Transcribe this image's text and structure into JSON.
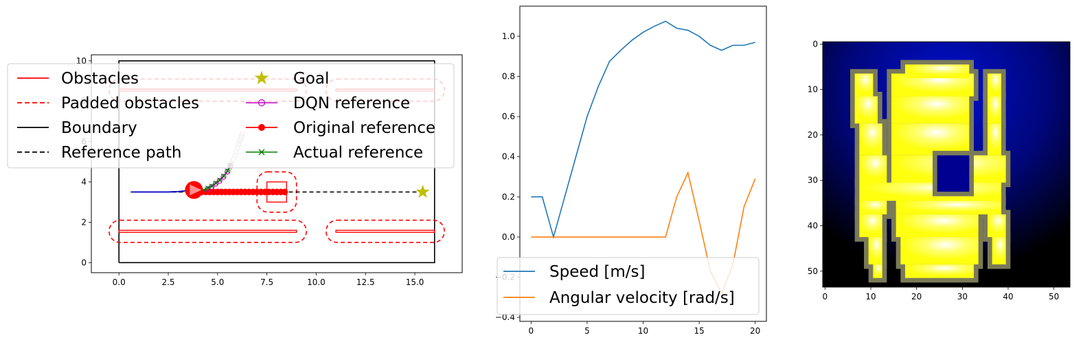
{
  "chart_data": [
    {
      "type": "line",
      "xlim": [
        -1.4,
        17.4
      ],
      "ylim": [
        -0.5,
        10.3
      ],
      "xticks": [
        0.0,
        2.5,
        5.0,
        7.5,
        10.0,
        12.5,
        15.0
      ],
      "xtick_labels": [
        "0.0",
        "2.5",
        "5.0",
        "7.5",
        "10.0",
        "12.5",
        "15.0"
      ],
      "yticks": [
        0,
        2,
        4,
        6,
        8,
        10
      ],
      "ytick_labels": [
        "0",
        "2",
        "4",
        "6",
        "8",
        "10"
      ],
      "legend": {
        "placement": "upper-left",
        "columns": 2,
        "entries": [
          "Obstacles",
          "Padded obstacles",
          "Boundary",
          "Reference path",
          "Goal",
          "DQN reference",
          "Original reference",
          "Actual reference"
        ]
      },
      "colors": {
        "obstacle": "#ff0000",
        "boundary": "#000000",
        "goal": "#bfbf00",
        "dqn": "#bf00bf",
        "original": "#ff0000",
        "actual": "#008000",
        "trajectory": "#0000bf",
        "robot": "#ff0000",
        "ghost": "#aaaaaa"
      },
      "boundary": [
        [
          0,
          0
        ],
        [
          16,
          0
        ],
        [
          16,
          10
        ],
        [
          0,
          10
        ]
      ],
      "obstacles": [
        {
          "x": [
            0,
            9
          ],
          "y": [
            1.5,
            1.6
          ]
        },
        {
          "x": [
            11,
            16
          ],
          "y": [
            1.5,
            1.6
          ]
        },
        {
          "x": [
            0,
            9
          ],
          "y": [
            8.5,
            8.6
          ]
        },
        {
          "x": [
            11,
            16
          ],
          "y": [
            8.5,
            8.6
          ]
        },
        {
          "x": [
            7.5,
            8.5
          ],
          "y": [
            3.0,
            4.0
          ]
        }
      ],
      "padded_obstacles": [
        {
          "x": [
            -0.5,
            9.5
          ],
          "y": [
            1.0,
            2.1
          ]
        },
        {
          "x": [
            10.5,
            16.5
          ],
          "y": [
            1.0,
            2.1
          ]
        },
        {
          "x": [
            -0.5,
            9.5
          ],
          "y": [
            8.0,
            9.1
          ]
        },
        {
          "x": [
            10.5,
            16.5
          ],
          "y": [
            8.0,
            9.1
          ]
        },
        {
          "x": [
            7.0,
            9.0
          ],
          "y": [
            2.5,
            4.5
          ]
        }
      ],
      "reference_path": {
        "x": [
          0.6,
          15.4
        ],
        "y": [
          3.5,
          3.5
        ]
      },
      "goal": [
        15.4,
        3.5
      ],
      "trajectory": {
        "x": [
          0.6,
          2.5,
          3.0,
          3.4,
          3.8
        ],
        "y": [
          3.5,
          3.5,
          3.52,
          3.56,
          3.6
        ]
      },
      "robot": {
        "x": 3.8,
        "y": 3.6
      },
      "original_reference": {
        "x": [
          4.0,
          4.2,
          4.4,
          4.6,
          4.8,
          5.0,
          5.2,
          5.4,
          5.6,
          5.8,
          6.0,
          6.2,
          6.4,
          6.6,
          6.8,
          7.0,
          7.2,
          7.4,
          7.6,
          7.8,
          8.0,
          8.2,
          8.4
        ],
        "y": [
          3.5,
          3.5,
          3.5,
          3.5,
          3.5,
          3.5,
          3.5,
          3.5,
          3.5,
          3.5,
          3.5,
          3.5,
          3.5,
          3.5,
          3.5,
          3.5,
          3.5,
          3.5,
          3.5,
          3.5,
          3.5,
          3.5,
          3.5
        ]
      },
      "dqn_reference": {
        "x": [
          4.5,
          4.7,
          4.9,
          5.1,
          5.3,
          5.5,
          5.65
        ],
        "y": [
          3.65,
          3.75,
          3.9,
          4.05,
          4.25,
          4.5,
          4.8
        ]
      },
      "actual_reference": {
        "x": [
          4.3,
          4.5,
          4.7,
          4.9,
          5.1,
          5.3,
          5.5,
          5.65
        ],
        "y": [
          3.6,
          3.7,
          3.8,
          3.95,
          4.1,
          4.3,
          4.55,
          4.85
        ]
      },
      "ghost_reference": {
        "x": [
          5.6,
          5.7,
          5.8,
          5.9,
          5.95,
          6.0,
          6.05,
          6.1,
          6.15,
          6.2,
          6.22,
          6.25
        ],
        "y": [
          4.7,
          4.9,
          5.1,
          5.3,
          5.5,
          5.7,
          5.85,
          6.0,
          6.1,
          6.2,
          6.3,
          6.4
        ]
      }
    },
    {
      "type": "line",
      "xlim": [
        -1.0,
        21.0
      ],
      "ylim": [
        -0.42,
        1.15
      ],
      "xticks": [
        0,
        5,
        10,
        15,
        20
      ],
      "xtick_labels": [
        "0",
        "5",
        "10",
        "15",
        "20"
      ],
      "yticks": [
        -0.4,
        -0.2,
        0.0,
        0.2,
        0.4,
        0.6,
        0.8,
        1.0
      ],
      "ytick_labels": [
        "−0.4",
        "−0.2",
        "0.0",
        "0.2",
        "0.4",
        "0.6",
        "0.8",
        "1.0"
      ],
      "legend": {
        "placement": "lower-left"
      },
      "x": [
        0,
        1,
        2,
        3,
        4,
        5,
        6,
        7,
        8,
        9,
        10,
        11,
        12,
        13,
        14,
        15,
        16,
        17,
        18,
        19,
        20
      ],
      "series": [
        {
          "name": "Speed [m/s]",
          "color": "#1f77b4",
          "values": [
            0.2,
            0.2,
            0.0,
            0.2,
            0.4,
            0.6,
            0.75,
            0.875,
            0.93,
            0.98,
            1.02,
            1.05,
            1.075,
            1.04,
            1.03,
            1.0,
            0.955,
            0.93,
            0.955,
            0.955,
            0.97
          ]
        },
        {
          "name": "Angular velocity [rad/s]",
          "color": "#ff7f0e",
          "values": [
            0,
            0,
            0,
            0,
            0,
            0,
            0,
            0,
            0,
            0,
            0,
            0,
            0,
            0.2,
            0.32,
            0.08,
            -0.17,
            -0.28,
            -0.14,
            0.15,
            0.29
          ]
        }
      ]
    },
    {
      "type": "heatmap",
      "xlim": [
        -0.5,
        53.5
      ],
      "ylim": [
        53.5,
        -0.5
      ],
      "xticks": [
        0,
        10,
        20,
        30,
        40,
        50
      ],
      "xtick_labels": [
        "0",
        "10",
        "20",
        "30",
        "40",
        "50"
      ],
      "yticks": [
        0,
        10,
        20,
        30,
        40,
        50
      ],
      "ytick_labels": [
        "0",
        "10",
        "20",
        "30",
        "40",
        "50"
      ],
      "colors": {
        "background_center": "#0010d0",
        "background_edge": "#000000",
        "free_space": "#ffff10",
        "free_space_glow": "#ffffff",
        "edge_grey": "#7a7a5a",
        "hole": "#000090"
      },
      "free_rows": [
        {
          "y0": 7,
          "y1": 12,
          "spans": [
            [
              7,
              10
            ],
            [
              15,
              32
            ],
            [
              36,
              38
            ]
          ]
        },
        {
          "y0": 12,
          "y1": 18,
          "spans": [
            [
              7,
              11
            ],
            [
              15,
              31
            ],
            [
              36,
              38
            ]
          ]
        },
        {
          "y0": 18,
          "y1": 25,
          "spans": [
            [
              8,
              12
            ],
            [
              15,
              31
            ],
            [
              36,
              38
            ]
          ]
        },
        {
          "y0": 25,
          "y1": 31,
          "spans": [
            [
              8,
              13
            ],
            [
              15,
              39
            ]
          ]
        },
        {
          "y0": 31,
          "y1": 35,
          "spans": [
            [
              8,
              38
            ]
          ]
        },
        {
          "y0": 35,
          "y1": 38,
          "spans": [
            [
              8,
              13
            ],
            [
              16,
              38
            ]
          ]
        },
        {
          "y0": 38,
          "y1": 43,
          "spans": [
            [
              8,
              12
            ],
            [
              16,
              33
            ],
            [
              36,
              39
            ]
          ]
        },
        {
          "y0": 43,
          "y1": 49,
          "spans": [
            [
              10,
              12
            ],
            [
              17,
              33
            ],
            [
              37,
              39
            ]
          ]
        },
        {
          "y0": 49,
          "y1": 52,
          "spans": [
            [
              11,
              12
            ],
            [
              18,
              32
            ]
          ]
        }
      ],
      "top_block": {
        "x": [
          18,
          31
        ],
        "y": [
          5,
          7
        ]
      },
      "hole": {
        "x": [
          25,
          31
        ],
        "y": [
          25,
          32
        ]
      }
    }
  ]
}
